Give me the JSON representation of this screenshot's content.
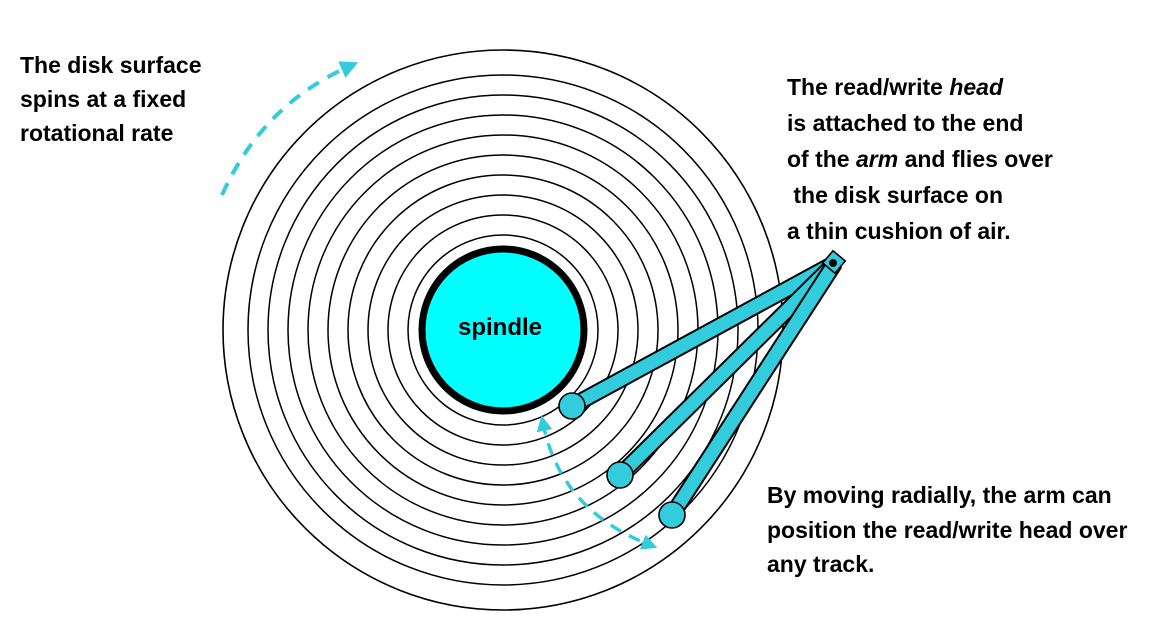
{
  "colors": {
    "spindle_fill": "#00ffff",
    "arm_fill": "#33ccdd",
    "arrow": "#33ccdd",
    "line": "#000000",
    "background": "#ffffff"
  },
  "spindle": {
    "label": "spindle"
  },
  "disk": {
    "track_count": 9
  },
  "arm": {
    "positions_shown": 3
  },
  "captions": {
    "spin": {
      "lines": [
        "The disk surface",
        "spins at a fixed",
        "rotational rate"
      ]
    },
    "head": {
      "line1_pre": "The read/write ",
      "line1_em": "head",
      "line2": "is attached to the end",
      "line3_pre": "of the ",
      "line3_em": "arm",
      "line3_post": " and flies over",
      "line4": " the disk surface on",
      "line5": "a thin cushion of air."
    },
    "move": {
      "lines": [
        "By moving radially, the arm can",
        "position the read/write head over",
        "any track."
      ]
    }
  }
}
